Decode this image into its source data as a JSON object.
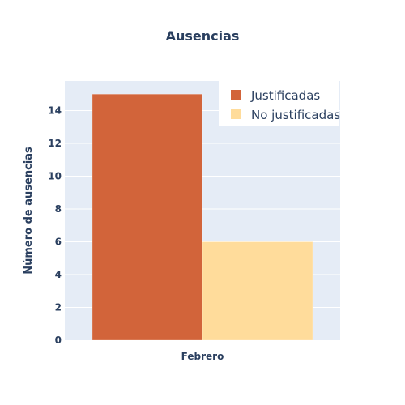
{
  "colors": {
    "plot_bg": "#e5ecf6",
    "grid": "#ffffff",
    "text": "#2a3f5f",
    "legend_bg": "#ffffff"
  },
  "chart_data": {
    "type": "bar",
    "title": "Ausencias",
    "xlabel": "",
    "ylabel": "Número de ausencias",
    "categories": [
      "Febrero"
    ],
    "series": [
      {
        "name": "Justificadas",
        "values": [
          15
        ],
        "color": "#d2643a"
      },
      {
        "name": "No justificadas",
        "values": [
          6
        ],
        "color": "#ffdc9b"
      }
    ],
    "ylim": [
      0,
      15.8
    ],
    "yticks": [
      0,
      2,
      4,
      6,
      8,
      10,
      12,
      14
    ],
    "grid": true,
    "legend_position": "top-right",
    "barmode": "group"
  }
}
